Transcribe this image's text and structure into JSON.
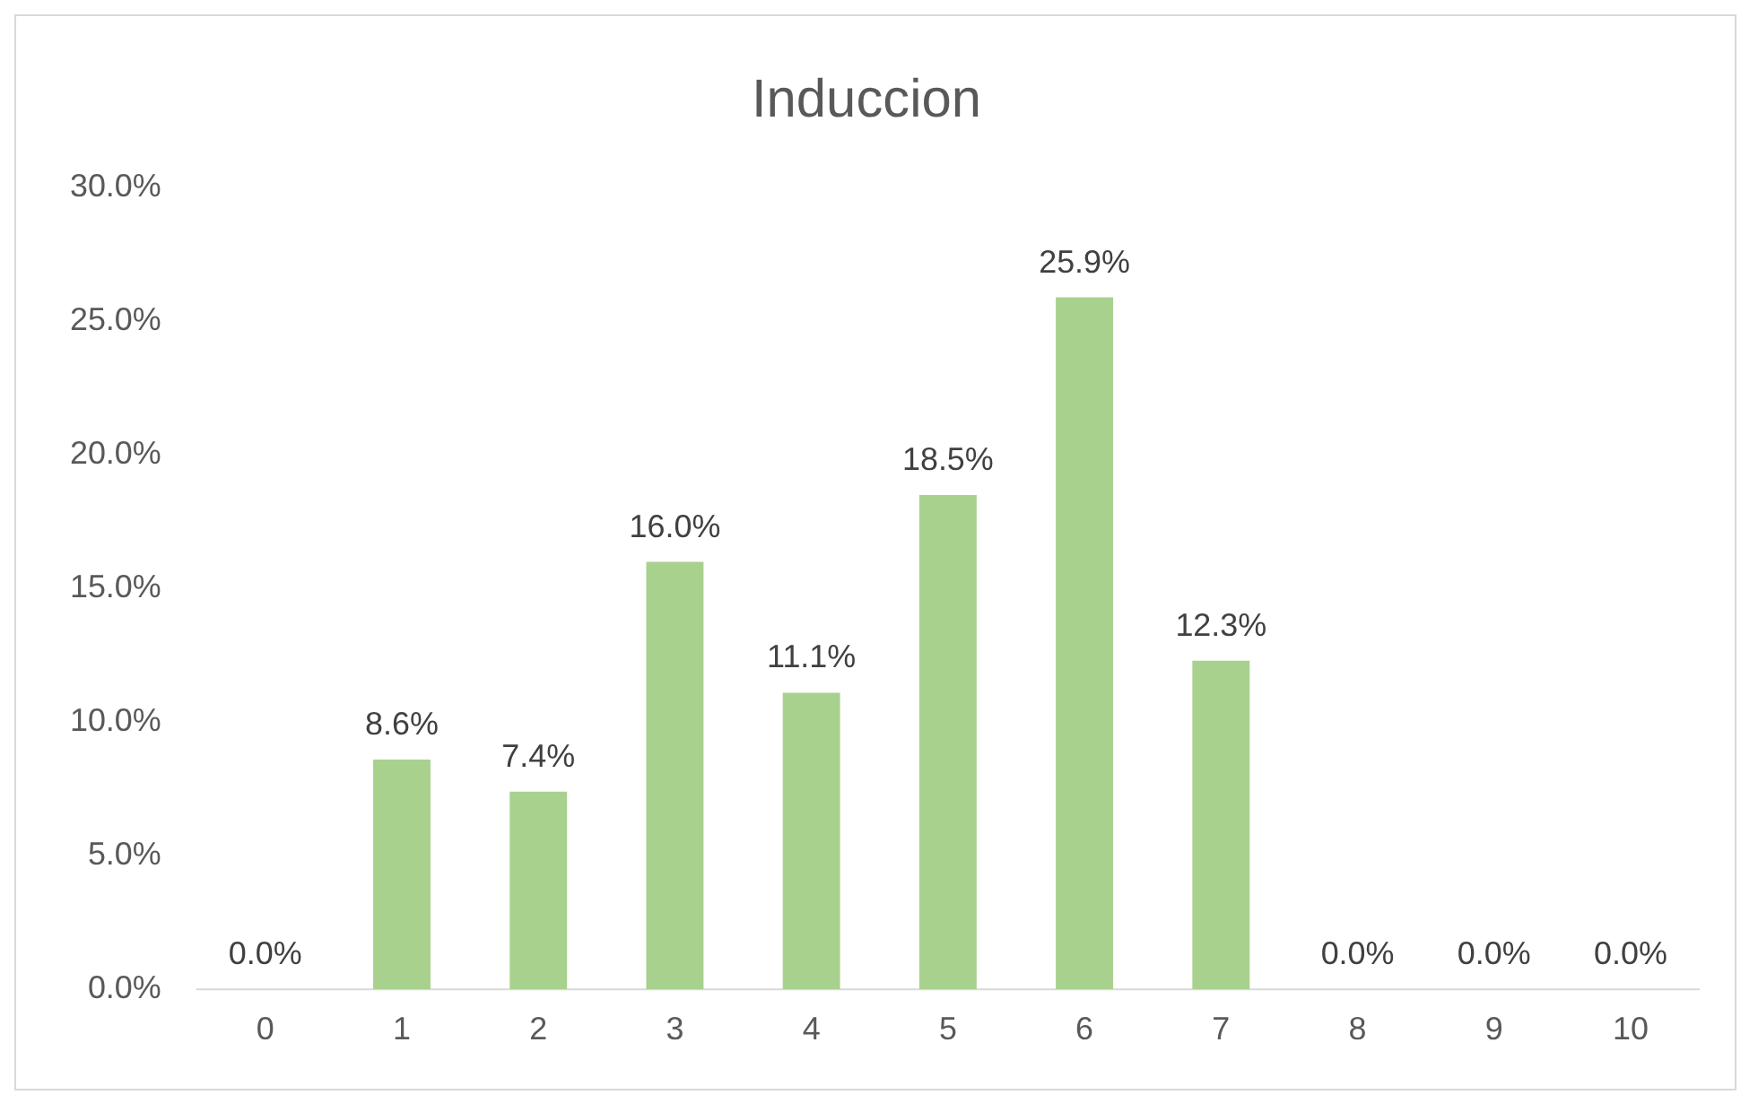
{
  "chart_data": {
    "type": "bar",
    "title": "Induccion",
    "categories": [
      "0",
      "1",
      "2",
      "3",
      "4",
      "5",
      "6",
      "7",
      "8",
      "9",
      "10"
    ],
    "values": [
      0,
      8.6,
      7.4,
      16.0,
      11.1,
      18.5,
      25.9,
      12.3,
      0,
      0,
      0
    ],
    "value_labels": [
      "0.0%",
      "8.6%",
      "7.4%",
      "16.0%",
      "11.1%",
      "18.5%",
      "25.9%",
      "12.3%",
      "0.0%",
      "0.0%",
      "0.0%"
    ],
    "color": "#a9d18e",
    "ylim": [
      0,
      30
    ],
    "yticks": [
      {
        "value": 0,
        "label": "0.0%"
      },
      {
        "value": 5,
        "label": "5.0%"
      },
      {
        "value": 10,
        "label": "10.0%"
      },
      {
        "value": 15,
        "label": "15.0%"
      },
      {
        "value": 20,
        "label": "20.0%"
      },
      {
        "value": 25,
        "label": "25.0%"
      },
      {
        "value": 30,
        "label": "30.0%"
      }
    ],
    "grid": false,
    "legend": false
  }
}
